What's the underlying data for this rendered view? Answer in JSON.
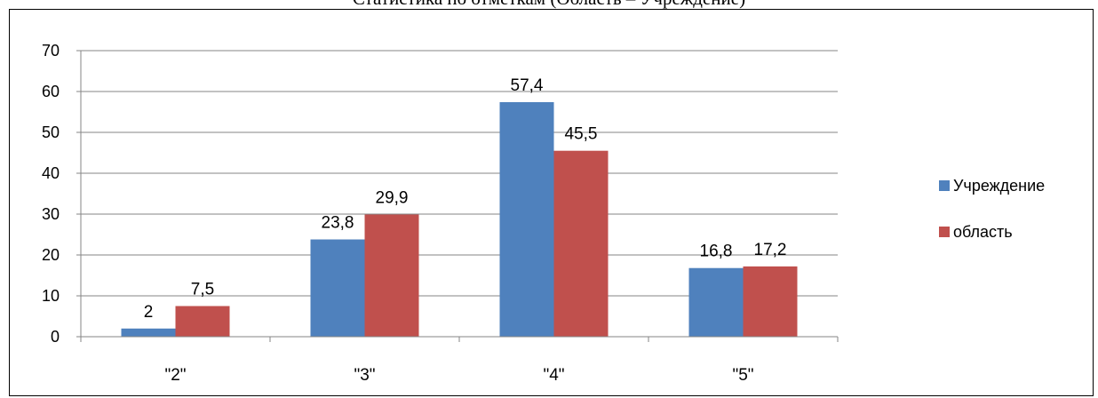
{
  "chart_data": {
    "type": "bar",
    "title": "Статистика по отметкам (Область – Учреждение)",
    "categories": [
      "\"2\"",
      "\"3\"",
      "\"4\"",
      "\"5\""
    ],
    "series": [
      {
        "name": "Учреждение",
        "color": "#4f81bd",
        "values": [
          2,
          23.8,
          57.4,
          16.8
        ],
        "labels": [
          "2",
          "23,8",
          "57,4",
          "16,8"
        ]
      },
      {
        "name": "область",
        "color": "#c0504d",
        "values": [
          7.5,
          29.9,
          45.5,
          17.2
        ],
        "labels": [
          "7,5",
          "29,9",
          "45,5",
          "17,2"
        ]
      }
    ],
    "ylim": [
      0,
      70
    ],
    "yticks": [
      0,
      10,
      20,
      30,
      40,
      50,
      60,
      70
    ],
    "grid": true,
    "legend": "right",
    "xlabel": "",
    "ylabel": ""
  }
}
